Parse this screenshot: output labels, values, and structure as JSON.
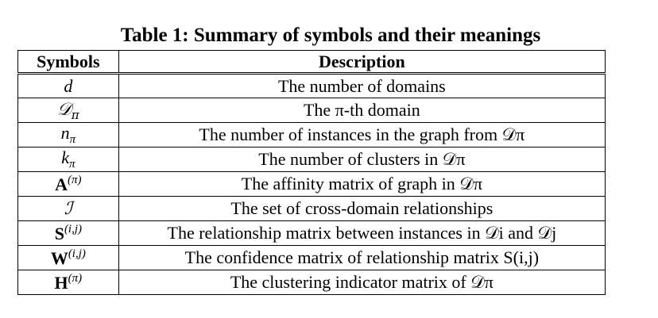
{
  "caption": "Table 1: Summary of symbols and their meanings",
  "table": {
    "headers": {
      "symbols": "Symbols",
      "description": "Description"
    },
    "rows": [
      {
        "symbol_base": "d",
        "symbol_script": "",
        "description": "The number of domains"
      },
      {
        "symbol_base": "𝒟",
        "symbol_script": "π",
        "description": "The π-th domain"
      },
      {
        "symbol_base": "n",
        "symbol_script": "π",
        "description": "The number of instances in the graph from 𝒟π"
      },
      {
        "symbol_base": "k",
        "symbol_script": "π",
        "description": "The number of clusters in 𝒟π"
      },
      {
        "symbol_base": "A",
        "symbol_script": "(π)",
        "description": "The affinity matrix of graph in 𝒟π"
      },
      {
        "symbol_base": "ℐ",
        "symbol_script": "",
        "description": "The set of cross-domain relationships"
      },
      {
        "symbol_base": "S",
        "symbol_script": "(i,j)",
        "description": "The relationship matrix between instances in 𝒟i and 𝒟j"
      },
      {
        "symbol_base": "W",
        "symbol_script": "(i,j)",
        "description": "The confidence matrix of relationship matrix S(i,j)"
      },
      {
        "symbol_base": "H",
        "symbol_script": "(π)",
        "description": "The clustering indicator matrix of 𝒟π"
      }
    ]
  }
}
